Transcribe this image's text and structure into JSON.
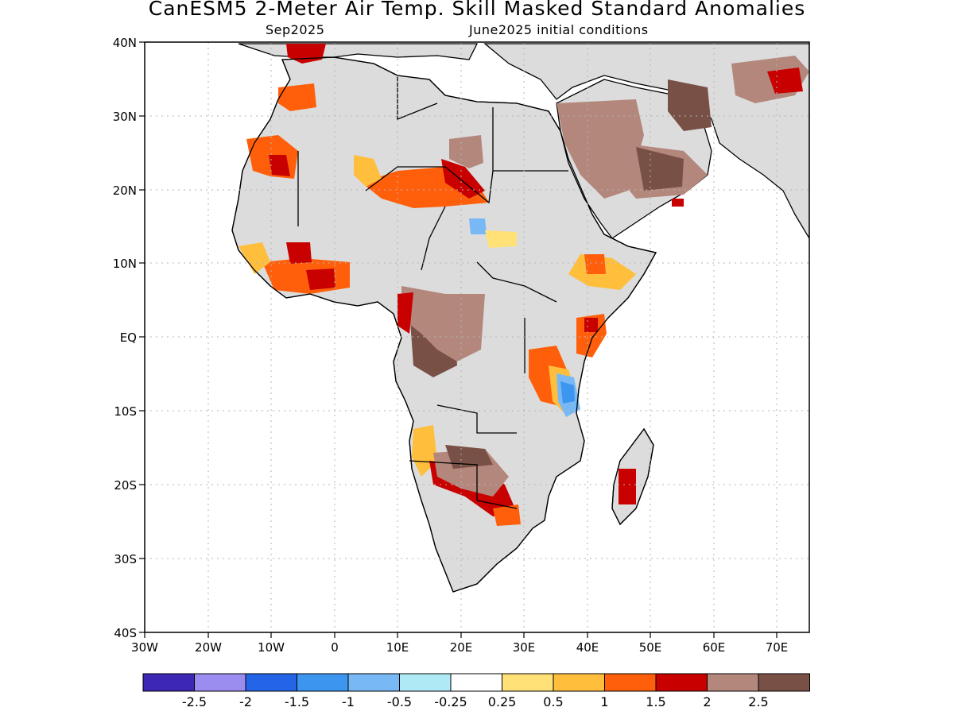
{
  "title": "CanESM5 2-Meter Air Temp. Skill Masked Standard Anomalies",
  "subtitle_left": "Sep2025",
  "subtitle_right": "June2025 initial conditions",
  "map": {
    "lon_range": [
      -30,
      75
    ],
    "lat_range": [
      -40,
      40
    ],
    "lon_ticks": [
      "30W",
      "20W",
      "10W",
      "0",
      "10E",
      "20E",
      "30E",
      "40E",
      "50E",
      "60E",
      "70E"
    ],
    "lat_ticks": [
      "40N",
      "30N",
      "20N",
      "10N",
      "EQ",
      "10S",
      "20S",
      "30S",
      "40S"
    ],
    "masked_color": "#dcdcdc",
    "land_outline_color": "#000000"
  },
  "colorbar": {
    "colors": [
      "#3c28b4",
      "#9b8cf0",
      "#2464e6",
      "#3c96f0",
      "#78b9f5",
      "#afe9f6",
      "#ffffff",
      "#ffe178",
      "#ffbe3c",
      "#ff5f0a",
      "#c80000",
      "#b4877d",
      "#785046"
    ],
    "labels": [
      "-2.5",
      "-2",
      "-1.5",
      "-1",
      "-0.5",
      "-0.25",
      "0.25",
      "0.5",
      "1",
      "1.5",
      "2",
      "2.5"
    ]
  }
}
